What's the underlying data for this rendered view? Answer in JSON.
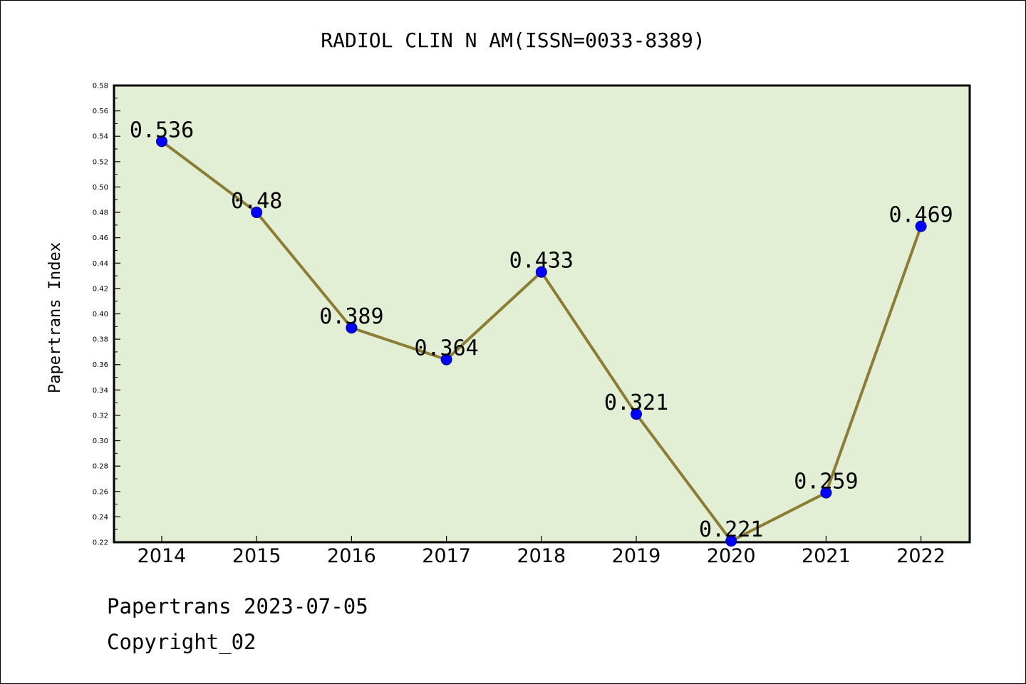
{
  "footer": {
    "line1": "Papertrans 2023-07-05",
    "line2": "Copyright_02"
  },
  "colors": {
    "plot_background": "#e2efd4",
    "line": "#8b7d35",
    "marker": "#0000ff",
    "marker_edge": "#00008b",
    "axis": "#000000"
  },
  "chart_data": {
    "type": "line",
    "title": "RADIOL CLIN N AM(ISSN=0033-8389)",
    "xlabel": "",
    "ylabel": "Papertrans Index",
    "categories": [
      "2014",
      "2015",
      "2016",
      "2017",
      "2018",
      "2019",
      "2020",
      "2021",
      "2022"
    ],
    "series": [
      {
        "values": [
          0.536,
          0.48,
          0.389,
          0.364,
          0.433,
          0.321,
          0.221,
          0.259,
          0.469
        ],
        "labels": [
          "0.536",
          "0.48",
          "0.389",
          "0.364",
          "0.433",
          "0.321",
          "0.221",
          "0.259",
          "0.469"
        ]
      }
    ],
    "ylim": [
      0.22,
      0.58
    ],
    "yticks": [
      "0.22",
      "0.24",
      "0.26",
      "0.28",
      "0.30",
      "0.32",
      "0.34",
      "0.36",
      "0.38",
      "0.40",
      "0.42",
      "0.44",
      "0.46",
      "0.48",
      "0.50",
      "0.52",
      "0.54",
      "0.56",
      "0.58"
    ],
    "grid": false,
    "legend": "none"
  }
}
